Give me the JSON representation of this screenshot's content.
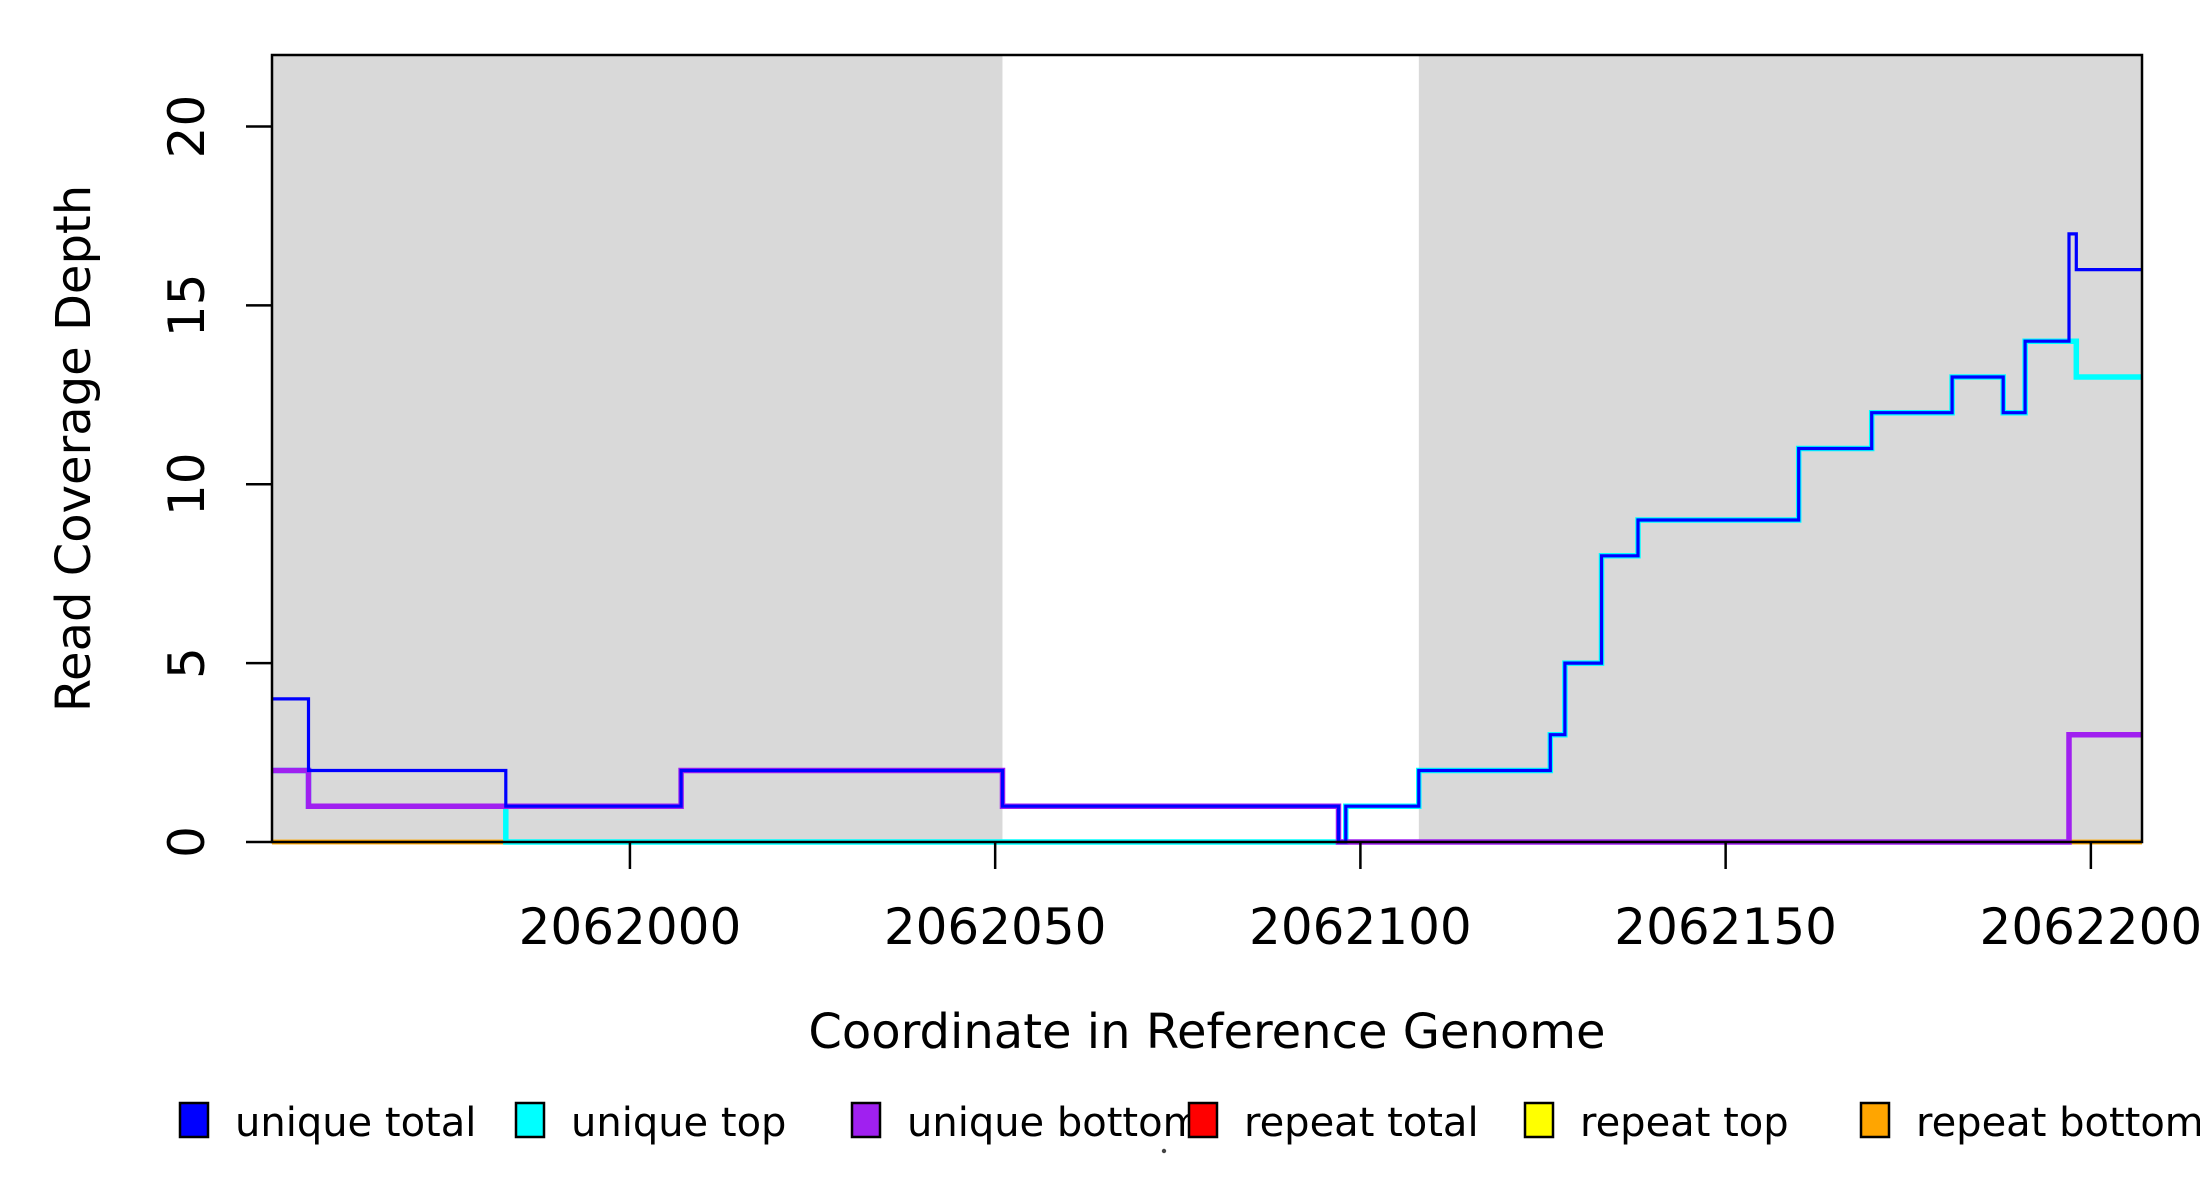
{
  "chart_data": {
    "type": "line",
    "subtype": "step",
    "title": "",
    "xlabel": "Coordinate in Reference Genome",
    "ylabel": "Read Coverage Depth",
    "xlim": [
      2061951,
      2062207
    ],
    "ylim": [
      0,
      22
    ],
    "xticks": [
      2062000,
      2062050,
      2062100,
      2062150,
      2062200
    ],
    "yticks": [
      0,
      5,
      10,
      15,
      20
    ],
    "grid": false,
    "legend_position": "bottom",
    "shaded_regions": [
      {
        "x0": 2061951,
        "x1": 2062051,
        "color": "#D9D9D9"
      },
      {
        "x0": 2062108,
        "x1": 2062207,
        "color": "#D9D9D9"
      }
    ],
    "series": [
      {
        "name": "repeat total",
        "color": "#FF0000",
        "xend": 2062207,
        "steps": [
          [
            2061951,
            0
          ]
        ]
      },
      {
        "name": "repeat top",
        "color": "#FFFF00",
        "xend": 2062207,
        "steps": [
          [
            2061951,
            0
          ]
        ]
      },
      {
        "name": "repeat bottom",
        "color": "#FFA500",
        "xend": 2062207,
        "steps": [
          [
            2061951,
            0
          ]
        ]
      },
      {
        "name": "unique top",
        "color": "#00FFFF",
        "xend": 2062207,
        "steps": [
          [
            2061951,
            2
          ],
          [
            2061956,
            1
          ],
          [
            2061983,
            0
          ],
          [
            2062098,
            1
          ],
          [
            2062108,
            2
          ],
          [
            2062126,
            3
          ],
          [
            2062128,
            5
          ],
          [
            2062133,
            8
          ],
          [
            2062138,
            9
          ],
          [
            2062160,
            11
          ],
          [
            2062170,
            12
          ],
          [
            2062181,
            13
          ],
          [
            2062188,
            12
          ],
          [
            2062191,
            14
          ],
          [
            2062198,
            13
          ]
        ]
      },
      {
        "name": "unique bottom",
        "color": "#A020F0",
        "xend": 2062207,
        "steps": [
          [
            2061951,
            2
          ],
          [
            2061956,
            1
          ],
          [
            2062007,
            2
          ],
          [
            2062051,
            1
          ],
          [
            2062097,
            0
          ],
          [
            2062197,
            3
          ]
        ]
      },
      {
        "name": "unique total",
        "color": "#0000FF",
        "xend": 2062207,
        "steps": [
          [
            2061951,
            4
          ],
          [
            2061956,
            2
          ],
          [
            2061983,
            1
          ],
          [
            2062007,
            2
          ],
          [
            2062051,
            1
          ],
          [
            2062097,
            0
          ],
          [
            2062098,
            1
          ],
          [
            2062108,
            2
          ],
          [
            2062126,
            3
          ],
          [
            2062128,
            5
          ],
          [
            2062133,
            8
          ],
          [
            2062138,
            9
          ],
          [
            2062160,
            11
          ],
          [
            2062170,
            12
          ],
          [
            2062181,
            13
          ],
          [
            2062188,
            12
          ],
          [
            2062191,
            14
          ],
          [
            2062197,
            17
          ],
          [
            2062198,
            16
          ]
        ]
      }
    ],
    "legend": [
      {
        "label": "unique total",
        "color": "#0000FF"
      },
      {
        "label": "unique top",
        "color": "#00FFFF"
      },
      {
        "label": "unique bottom",
        "color": "#A020F0"
      },
      {
        "label": "repeat total",
        "color": "#FF0000"
      },
      {
        "label": "repeat top",
        "color": "#FFFF00"
      },
      {
        "label": "repeat bottom",
        "color": "#FFA500"
      }
    ]
  }
}
